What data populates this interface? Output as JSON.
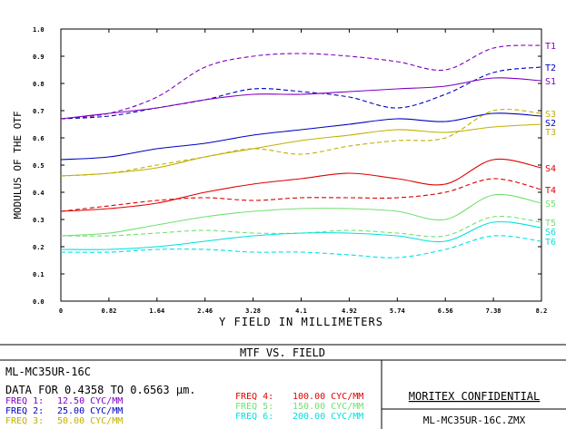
{
  "chart_data": {
    "type": "line",
    "ylabel": "MODULUS OF THE OTF",
    "xlabel": "Y FIELD IN MILLIMETERS",
    "xlim": [
      0,
      8.2
    ],
    "ylim": [
      0,
      1.0
    ],
    "x_ticks": [
      "0",
      "0.82",
      "1.64",
      "2.46",
      "3.28",
      "4.1",
      "4.92",
      "5.74",
      "6.56",
      "7.38",
      "8.2"
    ],
    "y_ticks": [
      "0.0",
      "0.1",
      "0.2",
      "0.3",
      "0.4",
      "0.5",
      "0.6",
      "0.7",
      "0.8",
      "0.9",
      "1.0"
    ],
    "x": [
      0,
      0.82,
      1.64,
      2.46,
      3.28,
      4.1,
      4.92,
      5.74,
      6.56,
      7.38,
      8.2
    ],
    "series": [
      {
        "name": "T1",
        "color": "#8000c0",
        "dash": true,
        "values": [
          0.67,
          0.69,
          0.75,
          0.86,
          0.9,
          0.91,
          0.9,
          0.88,
          0.85,
          0.93,
          0.94
        ]
      },
      {
        "name": "T2",
        "color": "#0000c0",
        "dash": true,
        "values": [
          0.67,
          0.68,
          0.71,
          0.74,
          0.78,
          0.77,
          0.75,
          0.71,
          0.76,
          0.84,
          0.86
        ]
      },
      {
        "name": "S1",
        "color": "#8000c0",
        "dash": false,
        "values": [
          0.67,
          0.69,
          0.71,
          0.74,
          0.76,
          0.76,
          0.77,
          0.78,
          0.79,
          0.82,
          0.81
        ]
      },
      {
        "name": "S3",
        "color": "#c0b000",
        "dash": true,
        "values": [
          0.46,
          0.47,
          0.5,
          0.53,
          0.56,
          0.54,
          0.57,
          0.59,
          0.6,
          0.7,
          0.69
        ]
      },
      {
        "name": "S2",
        "color": "#0000c0",
        "dash": false,
        "values": [
          0.52,
          0.53,
          0.56,
          0.58,
          0.61,
          0.63,
          0.65,
          0.67,
          0.66,
          0.69,
          0.68
        ]
      },
      {
        "name": "T3",
        "color": "#c0b000",
        "dash": false,
        "values": [
          0.46,
          0.47,
          0.49,
          0.53,
          0.56,
          0.59,
          0.61,
          0.63,
          0.62,
          0.64,
          0.65
        ]
      },
      {
        "name": "S4",
        "color": "#e00000",
        "dash": false,
        "values": [
          0.33,
          0.34,
          0.36,
          0.4,
          0.43,
          0.45,
          0.47,
          0.45,
          0.43,
          0.52,
          0.49
        ]
      },
      {
        "name": "T4",
        "color": "#e00000",
        "dash": true,
        "values": [
          0.33,
          0.35,
          0.37,
          0.38,
          0.37,
          0.38,
          0.38,
          0.38,
          0.4,
          0.45,
          0.41
        ]
      },
      {
        "name": "S5",
        "color": "#70e070",
        "dash": false,
        "values": [
          0.24,
          0.25,
          0.28,
          0.31,
          0.33,
          0.34,
          0.34,
          0.33,
          0.3,
          0.39,
          0.36
        ]
      },
      {
        "name": "T5",
        "color": "#70e070",
        "dash": true,
        "values": [
          0.24,
          0.24,
          0.25,
          0.26,
          0.25,
          0.25,
          0.26,
          0.25,
          0.24,
          0.31,
          0.29
        ]
      },
      {
        "name": "S6",
        "color": "#00e0e0",
        "dash": false,
        "values": [
          0.19,
          0.19,
          0.2,
          0.22,
          0.24,
          0.25,
          0.25,
          0.24,
          0.22,
          0.29,
          0.27
        ]
      },
      {
        "name": "T6",
        "color": "#00e0e0",
        "dash": true,
        "values": [
          0.18,
          0.18,
          0.19,
          0.19,
          0.18,
          0.18,
          0.17,
          0.16,
          0.19,
          0.24,
          0.22
        ]
      }
    ]
  },
  "info": {
    "title": "MTF VS. FIELD",
    "lens_name": "ML-MC35UR-16C",
    "data_line": "DATA FOR 0.4358 TO 0.6563 μm.",
    "freqs_left": [
      {
        "label": "FREQ 1:",
        "value": "12.50 CYC/MM",
        "color": "#8000c0"
      },
      {
        "label": "FREQ 2:",
        "value": "25.00 CYC/MM",
        "color": "#0000c0"
      },
      {
        "label": "FREQ 3:",
        "value": "50.00 CYC/MM",
        "color": "#c0b000"
      }
    ],
    "freqs_right": [
      {
        "label": "FREQ 4:",
        "value": "100.00 CYC/MM",
        "color": "#e00000"
      },
      {
        "label": "FREQ 5:",
        "value": "150.00 CYC/MM",
        "color": "#70e070"
      },
      {
        "label": "FREQ 6:",
        "value": "200.00 CYC/MM",
        "color": "#00e0e0"
      }
    ],
    "confidential": "MORITEX CONFIDENTIAL",
    "file_name": "ML-MC35UR-16C.ZMX"
  }
}
